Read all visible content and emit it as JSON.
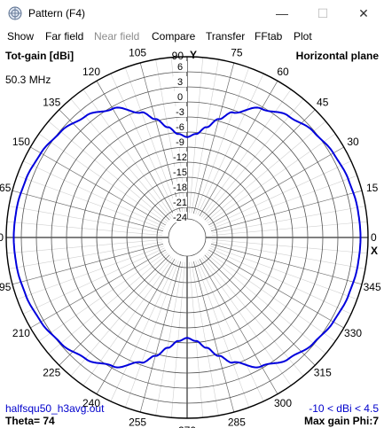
{
  "window": {
    "title": "Pattern   (F4)",
    "minimize_glyph": "—",
    "maximize_glyph": "☐",
    "close_glyph": "✕"
  },
  "menu": {
    "show": "Show",
    "far_field": "Far field",
    "near_field": "Near field",
    "compare": "Compare",
    "transfer": "Transfer",
    "fftab": "FFtab",
    "plot": "Plot"
  },
  "plot": {
    "top_left": "Tot-gain [dBi]",
    "top_right": "Horizontal plane",
    "frequency": "50.3 MHz",
    "filename": "halfsqu50_h3avg.out",
    "range": "-10 < dBi < 4.5",
    "theta": "Theta= 74",
    "max_gain": "Max gain Phi:7",
    "y_axis_letter": "Y",
    "x_axis_letter": "X"
  },
  "chart_data": {
    "type": "polar",
    "title": "",
    "radial_unit": "dBi",
    "radial_ticks": [
      "6",
      "3",
      "0",
      "-3",
      "-6",
      "-9",
      "-12",
      "-15",
      "-18",
      "-21",
      "-24"
    ],
    "angle_labels": [
      "0",
      "15",
      "30",
      "45",
      "60",
      "75",
      "90",
      "105",
      "120",
      "135",
      "150",
      "165",
      "180",
      "195",
      "210",
      "225",
      "240",
      "255",
      "270",
      "285",
      "300",
      "315",
      "330",
      "345"
    ],
    "series": [
      {
        "color": "#0000dd",
        "phi_deg": [
          0,
          10,
          20,
          30,
          40,
          50,
          60,
          70,
          75,
          80,
          85,
          90,
          95,
          100,
          105,
          110,
          120,
          130,
          140,
          150,
          160,
          170,
          180,
          190,
          200,
          210,
          220,
          230,
          240,
          250,
          255,
          260,
          265,
          270,
          275,
          280,
          285,
          290,
          300,
          310,
          320,
          330,
          340,
          350
        ],
        "gain_dbi": [
          4.5,
          4.4,
          4.1,
          3.6,
          2.8,
          1.5,
          -0.4,
          -3.5,
          -5.6,
          -7.7,
          -9.3,
          -10.0,
          -9.3,
          -7.7,
          -5.6,
          -3.5,
          -0.4,
          1.5,
          2.8,
          3.6,
          4.1,
          4.4,
          4.5,
          4.4,
          4.1,
          3.6,
          2.8,
          1.5,
          -0.4,
          -3.5,
          -5.6,
          -7.7,
          -9.3,
          -10.0,
          -9.3,
          -7.7,
          -5.6,
          -3.5,
          -0.4,
          1.5,
          2.8,
          3.6,
          4.1,
          4.4
        ]
      }
    ]
  }
}
